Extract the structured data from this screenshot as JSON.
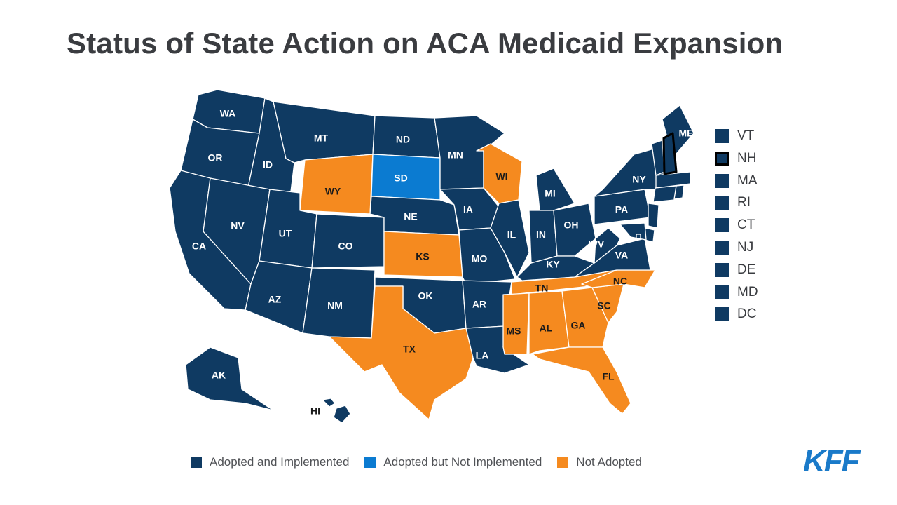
{
  "title": "Status of State Action on ACA Medicaid Expansion",
  "colors": {
    "adopted_implemented": "#0f3a62",
    "adopted_not_implemented": "#0b7bd1",
    "not_adopted": "#f58a1f"
  },
  "legend": [
    {
      "key": "adopted_implemented",
      "label": "Adopted and Implemented"
    },
    {
      "key": "adopted_not_implemented",
      "label": "Adopted but Not Implemented"
    },
    {
      "key": "not_adopted",
      "label": "Not Adopted"
    }
  ],
  "small_states": [
    {
      "abbr": "VT",
      "status": "adopted_implemented"
    },
    {
      "abbr": "NH",
      "status": "adopted_implemented",
      "highlighted": true
    },
    {
      "abbr": "MA",
      "status": "adopted_implemented"
    },
    {
      "abbr": "RI",
      "status": "adopted_implemented"
    },
    {
      "abbr": "CT",
      "status": "adopted_implemented"
    },
    {
      "abbr": "NJ",
      "status": "adopted_implemented"
    },
    {
      "abbr": "DE",
      "status": "adopted_implemented"
    },
    {
      "abbr": "MD",
      "status": "adopted_implemented"
    },
    {
      "abbr": "DC",
      "status": "adopted_implemented"
    }
  ],
  "states": [
    {
      "abbr": "WA",
      "status": "adopted_implemented"
    },
    {
      "abbr": "OR",
      "status": "adopted_implemented"
    },
    {
      "abbr": "CA",
      "status": "adopted_implemented"
    },
    {
      "abbr": "ID",
      "status": "adopted_implemented"
    },
    {
      "abbr": "NV",
      "status": "adopted_implemented"
    },
    {
      "abbr": "MT",
      "status": "adopted_implemented"
    },
    {
      "abbr": "WY",
      "status": "not_adopted"
    },
    {
      "abbr": "UT",
      "status": "adopted_implemented"
    },
    {
      "abbr": "AZ",
      "status": "adopted_implemented"
    },
    {
      "abbr": "CO",
      "status": "adopted_implemented"
    },
    {
      "abbr": "NM",
      "status": "adopted_implemented"
    },
    {
      "abbr": "ND",
      "status": "adopted_implemented"
    },
    {
      "abbr": "SD",
      "status": "adopted_not_implemented"
    },
    {
      "abbr": "NE",
      "status": "adopted_implemented"
    },
    {
      "abbr": "KS",
      "status": "not_adopted"
    },
    {
      "abbr": "OK",
      "status": "adopted_implemented"
    },
    {
      "abbr": "TX",
      "status": "not_adopted"
    },
    {
      "abbr": "MN",
      "status": "adopted_implemented"
    },
    {
      "abbr": "IA",
      "status": "adopted_implemented"
    },
    {
      "abbr": "MO",
      "status": "adopted_implemented"
    },
    {
      "abbr": "AR",
      "status": "adopted_implemented"
    },
    {
      "abbr": "LA",
      "status": "adopted_implemented"
    },
    {
      "abbr": "WI",
      "status": "not_adopted"
    },
    {
      "abbr": "IL",
      "status": "adopted_implemented"
    },
    {
      "abbr": "MI",
      "status": "adopted_implemented"
    },
    {
      "abbr": "IN",
      "status": "adopted_implemented"
    },
    {
      "abbr": "OH",
      "status": "adopted_implemented"
    },
    {
      "abbr": "KY",
      "status": "adopted_implemented"
    },
    {
      "abbr": "TN",
      "status": "not_adopted"
    },
    {
      "abbr": "MS",
      "status": "not_adopted"
    },
    {
      "abbr": "AL",
      "status": "not_adopted"
    },
    {
      "abbr": "GA",
      "status": "not_adopted"
    },
    {
      "abbr": "FL",
      "status": "not_adopted"
    },
    {
      "abbr": "SC",
      "status": "not_adopted"
    },
    {
      "abbr": "NC",
      "status": "not_adopted"
    },
    {
      "abbr": "VA",
      "status": "adopted_implemented"
    },
    {
      "abbr": "WV",
      "status": "adopted_implemented"
    },
    {
      "abbr": "PA",
      "status": "adopted_implemented"
    },
    {
      "abbr": "NY",
      "status": "adopted_implemented"
    },
    {
      "abbr": "ME",
      "status": "adopted_implemented"
    },
    {
      "abbr": "AK",
      "status": "adopted_implemented"
    },
    {
      "abbr": "HI",
      "status": "adopted_implemented"
    }
  ],
  "brand": "KFF"
}
